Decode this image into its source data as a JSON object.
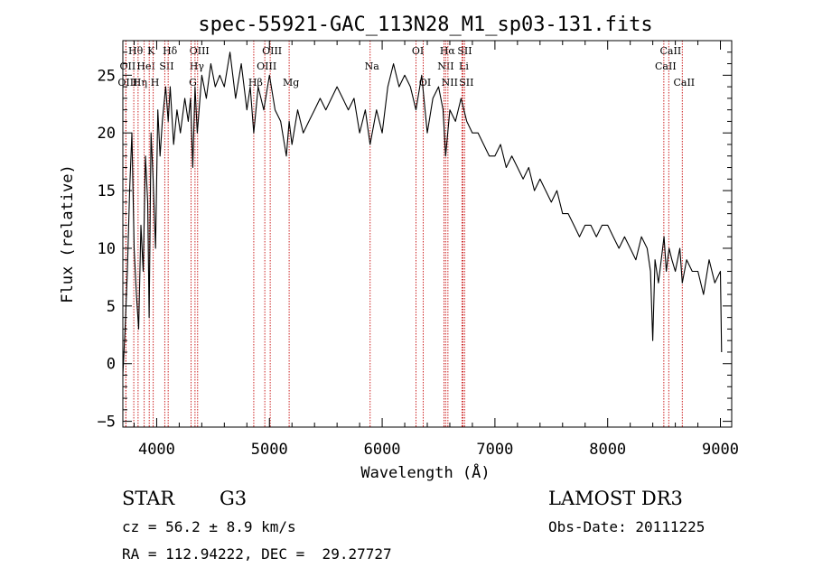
{
  "chart_data": {
    "type": "line",
    "title": "spec-55921-GAC_113N28_M1_sp03-131.fits",
    "xlabel": "Wavelength (Å)",
    "ylabel": "Flux (relative)",
    "xlim": [
      3700,
      9100
    ],
    "ylim": [
      -5.5,
      28
    ],
    "xticks": [
      4000,
      5000,
      6000,
      7000,
      8000,
      9000
    ],
    "yticks": [
      -5,
      0,
      5,
      10,
      15,
      20,
      25
    ],
    "xtick_labels": [
      "4000",
      "5000",
      "6000",
      "7000",
      "8000",
      "9000"
    ],
    "ytick_labels": [
      "−5",
      "0",
      "5",
      "10",
      "15",
      "20",
      "25"
    ],
    "series": [
      {
        "name": "flux",
        "x": [
          3700,
          3720,
          3740,
          3760,
          3780,
          3800,
          3820,
          3840,
          3860,
          3880,
          3900,
          3920,
          3933,
          3950,
          3968,
          3990,
          4010,
          4030,
          4050,
          4080,
          4102,
          4120,
          4150,
          4180,
          4210,
          4250,
          4280,
          4300,
          4320,
          4340,
          4360,
          4400,
          4440,
          4480,
          4520,
          4560,
          4600,
          4650,
          4700,
          4750,
          4800,
          4830,
          4861,
          4900,
          4950,
          5000,
          5050,
          5100,
          5150,
          5175,
          5200,
          5250,
          5300,
          5350,
          5400,
          5450,
          5500,
          5550,
          5600,
          5650,
          5700,
          5750,
          5800,
          5850,
          5893,
          5950,
          6000,
          6050,
          6100,
          6150,
          6200,
          6250,
          6300,
          6350,
          6400,
          6450,
          6500,
          6540,
          6563,
          6600,
          6650,
          6700,
          6750,
          6800,
          6850,
          6900,
          6950,
          7000,
          7050,
          7100,
          7150,
          7200,
          7250,
          7300,
          7350,
          7400,
          7450,
          7500,
          7550,
          7600,
          7650,
          7700,
          7750,
          7800,
          7850,
          7900,
          7950,
          8000,
          8050,
          8100,
          8150,
          8200,
          8250,
          8300,
          8350,
          8380,
          8400,
          8420,
          8450,
          8500,
          8520,
          8545,
          8570,
          8600,
          8640,
          8662,
          8700,
          8750,
          8800,
          8850,
          8900,
          8950,
          9000,
          9010
        ],
        "y": [
          -1,
          3,
          8,
          15,
          20,
          10,
          6,
          3,
          12,
          8,
          18,
          14,
          4,
          20,
          16,
          10,
          22,
          18,
          21,
          24,
          21,
          24,
          19,
          22,
          20,
          23,
          21,
          23,
          17,
          24,
          20,
          25,
          23,
          26,
          24,
          25,
          24,
          27,
          23,
          26,
          22,
          24,
          20,
          24,
          22,
          25,
          22,
          21,
          18,
          21,
          19,
          22,
          20,
          21,
          22,
          23,
          22,
          23,
          24,
          23,
          22,
          23,
          20,
          22,
          19,
          22,
          20,
          24,
          26,
          24,
          25,
          24,
          22,
          25,
          20,
          23,
          24,
          22,
          18,
          22,
          21,
          23,
          21,
          20,
          20,
          19,
          18,
          18,
          19,
          17,
          18,
          17,
          16,
          17,
          15,
          16,
          15,
          14,
          15,
          13,
          13,
          12,
          11,
          12,
          12,
          11,
          12,
          12,
          11,
          10,
          11,
          10,
          9,
          11,
          10,
          8,
          2,
          9,
          7,
          11,
          8,
          10,
          9,
          8,
          10,
          7,
          9,
          8,
          8,
          6,
          9,
          7,
          8,
          1
        ]
      }
    ],
    "lines": [
      {
        "name": "Hθ",
        "x": 3797,
        "row": 0
      },
      {
        "name": "OII",
        "x": 3727,
        "row": 1
      },
      {
        "name": "OIII",
        "x": 3727,
        "row": 2
      },
      {
        "name": "Hη",
        "x": 3835,
        "row": 2
      },
      {
        "name": "HeI",
        "x": 3889,
        "row": 1
      },
      {
        "name": "K",
        "x": 3934,
        "row": 0
      },
      {
        "name": "H",
        "x": 3969,
        "row": 2
      },
      {
        "name": "SII",
        "x": 4072,
        "row": 1
      },
      {
        "name": "Hδ",
        "x": 4102,
        "row": 0
      },
      {
        "name": "OIII",
        "x": 4363,
        "row": 0
      },
      {
        "name": "Hγ",
        "x": 4340,
        "row": 1
      },
      {
        "name": "G",
        "x": 4305,
        "row": 2
      },
      {
        "name": "Hβ",
        "x": 4861,
        "row": 2
      },
      {
        "name": "OIII",
        "x": 5007,
        "row": 0
      },
      {
        "name": "OIII",
        "x": 4959,
        "row": 1
      },
      {
        "name": "Mg",
        "x": 5175,
        "row": 2
      },
      {
        "name": "Na",
        "x": 5893,
        "row": 1
      },
      {
        "name": "OI",
        "x": 6300,
        "row": 0
      },
      {
        "name": "OI",
        "x": 6364,
        "row": 2
      },
      {
        "name": "Hα",
        "x": 6563,
        "row": 0
      },
      {
        "name": "NII",
        "x": 6548,
        "row": 1
      },
      {
        "name": "NII",
        "x": 6583,
        "row": 2
      },
      {
        "name": "SII",
        "x": 6716,
        "row": 0
      },
      {
        "name": "Li",
        "x": 6708,
        "row": 1
      },
      {
        "name": "SII",
        "x": 6731,
        "row": 2
      },
      {
        "name": "CaII",
        "x": 8542,
        "row": 0
      },
      {
        "name": "CaII",
        "x": 8498,
        "row": 1
      },
      {
        "name": "CaII",
        "x": 8662,
        "row": 2
      }
    ]
  },
  "info": {
    "object_type": "STAR",
    "subclass": "G3",
    "survey": "LAMOST DR3",
    "cz": "cz = 56.2 ± 8.9 km/s",
    "obs_date": "Obs-Date: 20111225",
    "radec": "RA = 112.94222, DEC =  29.27727"
  }
}
